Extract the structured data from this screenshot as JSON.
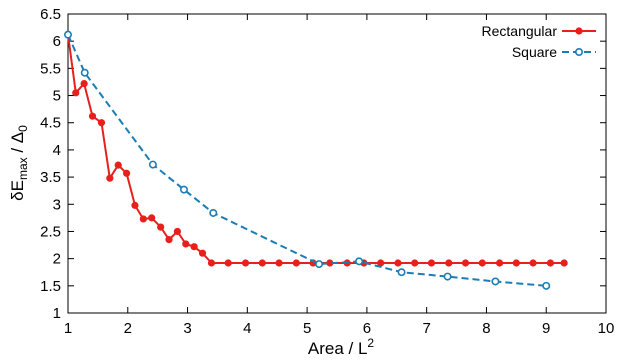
{
  "chart_data": {
    "type": "line",
    "xlabel": "Area / L",
    "xlabel_superscript": "2",
    "ylabel": "δE",
    "ylabel_subscript": "max",
    "ylabel_tail": " / Δ",
    "ylabel_tail_subscript": "0",
    "xlim": [
      1,
      10
    ],
    "ylim": [
      1,
      6.5
    ],
    "xticks": [
      1,
      2,
      3,
      4,
      5,
      6,
      7,
      8,
      9,
      10
    ],
    "xtick_labels": [
      "1",
      "2",
      "3",
      "4",
      "5",
      "6",
      "7",
      "8",
      "9",
      "10"
    ],
    "yticks": [
      1,
      1.5,
      2,
      2.5,
      3,
      3.5,
      4,
      4.5,
      5,
      5.5,
      6,
      6.5
    ],
    "ytick_labels": [
      "1",
      "1.5",
      "2",
      "2.5",
      "3",
      "3.5",
      "4",
      "4.5",
      "5",
      "5.5",
      "6",
      "6.5"
    ],
    "grid": false,
    "legend_position": "top-right",
    "series": [
      {
        "name": "Rectangular",
        "color": "#e8201c",
        "line_style": "solid",
        "marker": "filled-circle",
        "x": [
          1.0,
          1.13,
          1.27,
          1.41,
          1.56,
          1.7,
          1.84,
          1.98,
          2.12,
          2.26,
          2.4,
          2.55,
          2.69,
          2.83,
          2.97,
          3.11,
          3.25,
          3.4,
          3.68,
          3.97,
          4.25,
          4.53,
          4.82,
          5.1,
          5.38,
          5.67,
          5.95,
          6.23,
          6.52,
          6.8,
          7.08,
          7.37,
          7.65,
          7.93,
          8.22,
          8.5,
          8.78,
          9.07,
          9.3
        ],
        "y": [
          6.12,
          5.05,
          5.22,
          4.62,
          4.5,
          3.48,
          3.72,
          3.57,
          2.98,
          2.73,
          2.75,
          2.58,
          2.35,
          2.5,
          2.27,
          2.22,
          2.1,
          1.92,
          1.92,
          1.92,
          1.92,
          1.92,
          1.92,
          1.92,
          1.92,
          1.92,
          1.92,
          1.92,
          1.92,
          1.92,
          1.92,
          1.92,
          1.92,
          1.92,
          1.92,
          1.92,
          1.92,
          1.92,
          1.92
        ]
      },
      {
        "name": "Square",
        "color": "#1a7db5",
        "line_style": "dashed",
        "marker": "open-circle",
        "x": [
          1.0,
          1.28,
          2.42,
          2.94,
          3.43,
          5.2,
          5.87,
          6.58,
          7.35,
          8.15,
          9.0
        ],
        "y": [
          6.12,
          5.42,
          3.73,
          3.27,
          2.84,
          1.9,
          1.95,
          1.75,
          1.67,
          1.58,
          1.5
        ]
      }
    ]
  }
}
